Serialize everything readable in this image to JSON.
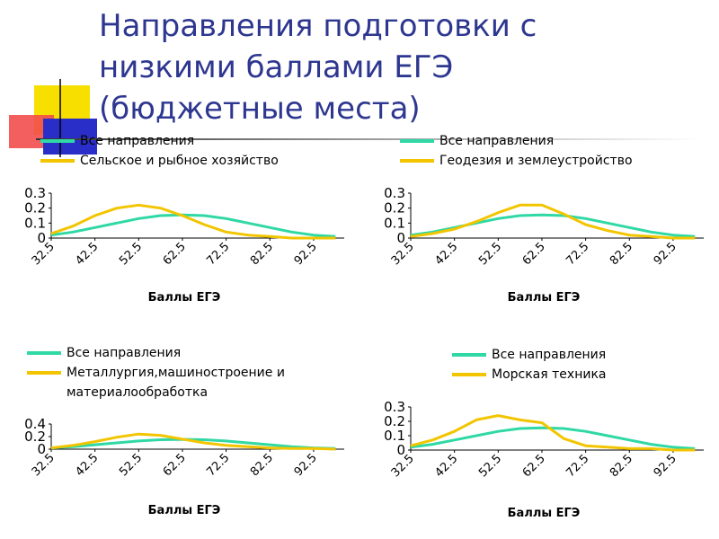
{
  "title": "Направления подготовки с низкими баллами ЕГЭ (бюджетные места)",
  "chart_data": [
    {
      "type": "line",
      "x_label": "Баллы ЕГЭ",
      "x": [
        32.5,
        37.5,
        42.5,
        47.5,
        52.5,
        57.5,
        62.5,
        67.5,
        72.5,
        77.5,
        82.5,
        87.5,
        92.5,
        97.5
      ],
      "series": [
        {
          "name": "Все направления",
          "color": "#2fd8a4",
          "values": [
            0.02,
            0.04,
            0.07,
            0.1,
            0.13,
            0.15,
            0.155,
            0.15,
            0.13,
            0.1,
            0.07,
            0.04,
            0.02,
            0.01
          ]
        },
        {
          "name": "Сельское и рыбное хозяйство",
          "color": "#f2c500",
          "values": [
            0.03,
            0.08,
            0.15,
            0.2,
            0.22,
            0.2,
            0.15,
            0.09,
            0.04,
            0.02,
            0.01,
            0,
            0,
            0
          ]
        }
      ],
      "xlim": [
        32.5,
        99.5
      ],
      "xticks": [
        32.5,
        42.5,
        52.5,
        62.5,
        72.5,
        82.5,
        92.5
      ],
      "ylim": [
        0,
        0.3
      ],
      "yticks": [
        0,
        0.1,
        0.2,
        0.3
      ]
    },
    {
      "type": "line",
      "x_label": "Баллы ЕГЭ",
      "x": [
        32.5,
        37.5,
        42.5,
        47.5,
        52.5,
        57.5,
        62.5,
        67.5,
        72.5,
        77.5,
        82.5,
        87.5,
        92.5,
        97.5
      ],
      "series": [
        {
          "name": "Все направления",
          "color": "#2fd8a4",
          "values": [
            0.02,
            0.04,
            0.07,
            0.1,
            0.13,
            0.15,
            0.155,
            0.15,
            0.13,
            0.1,
            0.07,
            0.04,
            0.02,
            0.01
          ]
        },
        {
          "name": "Геодезия и землеустройство",
          "color": "#f2c500",
          "values": [
            0.01,
            0.03,
            0.06,
            0.11,
            0.17,
            0.22,
            0.22,
            0.16,
            0.09,
            0.05,
            0.02,
            0.01,
            0,
            0
          ]
        }
      ],
      "xlim": [
        32.5,
        99.5
      ],
      "xticks": [
        32.5,
        42.5,
        52.5,
        62.5,
        72.5,
        82.5,
        92.5
      ],
      "ylim": [
        0,
        0.3
      ],
      "yticks": [
        0,
        0.1,
        0.2,
        0.3
      ]
    },
    {
      "type": "line",
      "x_label": "Баллы ЕГЭ",
      "x": [
        32.5,
        37.5,
        42.5,
        47.5,
        52.5,
        57.5,
        62.5,
        67.5,
        72.5,
        77.5,
        82.5,
        87.5,
        92.5,
        97.5
      ],
      "series": [
        {
          "name": "Все направления",
          "color": "#2fd8a4",
          "values": [
            0.02,
            0.04,
            0.07,
            0.1,
            0.13,
            0.15,
            0.155,
            0.15,
            0.13,
            0.1,
            0.07,
            0.04,
            0.02,
            0.01
          ]
        },
        {
          "name": "Металлургия,машиностроение и материалообработка",
          "color": "#f2c500",
          "values": [
            0.02,
            0.06,
            0.12,
            0.19,
            0.24,
            0.22,
            0.16,
            0.1,
            0.06,
            0.04,
            0.02,
            0.01,
            0.01,
            0
          ]
        }
      ],
      "xlim": [
        32.5,
        99.5
      ],
      "xticks": [
        32.5,
        42.5,
        52.5,
        62.5,
        72.5,
        82.5,
        92.5
      ],
      "ylim": [
        0,
        0.4
      ],
      "yticks": [
        0,
        0.2,
        0.4
      ]
    },
    {
      "type": "line",
      "x_label": "Баллы ЕГЭ",
      "x": [
        32.5,
        37.5,
        42.5,
        47.5,
        52.5,
        57.5,
        62.5,
        67.5,
        72.5,
        77.5,
        82.5,
        87.5,
        92.5,
        97.5
      ],
      "series": [
        {
          "name": "Все направления",
          "color": "#2fd8a4",
          "values": [
            0.02,
            0.04,
            0.07,
            0.1,
            0.13,
            0.15,
            0.155,
            0.15,
            0.13,
            0.1,
            0.07,
            0.04,
            0.02,
            0.01
          ]
        },
        {
          "name": "Морская техника",
          "color": "#f2c500",
          "values": [
            0.03,
            0.07,
            0.13,
            0.21,
            0.24,
            0.21,
            0.19,
            0.08,
            0.03,
            0.02,
            0.01,
            0.01,
            0,
            0
          ]
        }
      ],
      "xlim": [
        32.5,
        99.5
      ],
      "xticks": [
        32.5,
        42.5,
        52.5,
        62.5,
        72.5,
        82.5,
        92.5
      ],
      "ylim": [
        0,
        0.3
      ],
      "yticks": [
        0,
        0.1,
        0.2,
        0.3
      ]
    }
  ]
}
